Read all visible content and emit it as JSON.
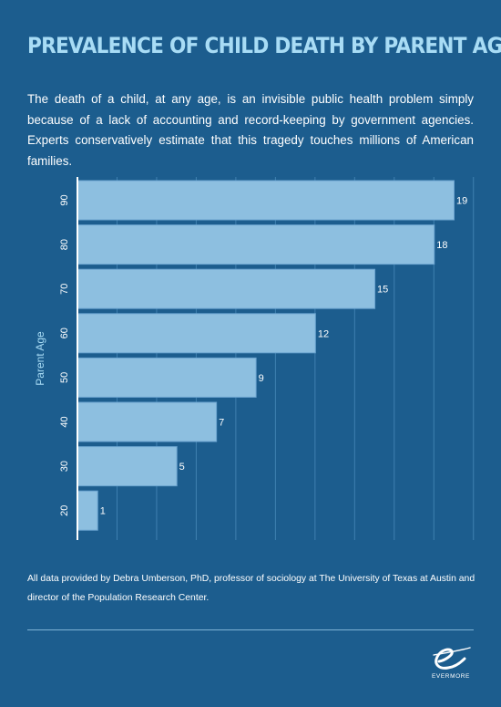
{
  "title": "PREVALENCE OF CHILD DEATH BY PARENT AGE",
  "intro": "The death of a child, at any age, is an invisible public health problem simply because of a lack of accounting and record-keeping by government agencies. Experts conservatively estimate that this tragedy touches millions of American families.",
  "footnote": "All data provided by Debra Umberson, PhD,  professor of sociology at The University of Texas at Austin and director of the Population Research Center.",
  "brand": {
    "name": "EVERMORE",
    "mark": "e"
  },
  "colors": {
    "background": "#1c5d8e",
    "bar": "#8dbfe0",
    "bar_border": "#6aa3cf",
    "title": "#a8dcf5",
    "gridline": "#3f80b0"
  },
  "chart_data": {
    "type": "bar",
    "orientation": "horizontal",
    "title": "",
    "xlabel": "",
    "ylabel": "Parent Age",
    "categories": [
      "90",
      "80",
      "70",
      "60",
      "50",
      "40",
      "30",
      "20"
    ],
    "values": [
      19,
      18,
      15,
      12,
      9,
      7,
      5,
      1
    ],
    "xlim": [
      0,
      20
    ],
    "x_tick_labels_shown": false,
    "value_labels": true,
    "grid": "vertical"
  }
}
